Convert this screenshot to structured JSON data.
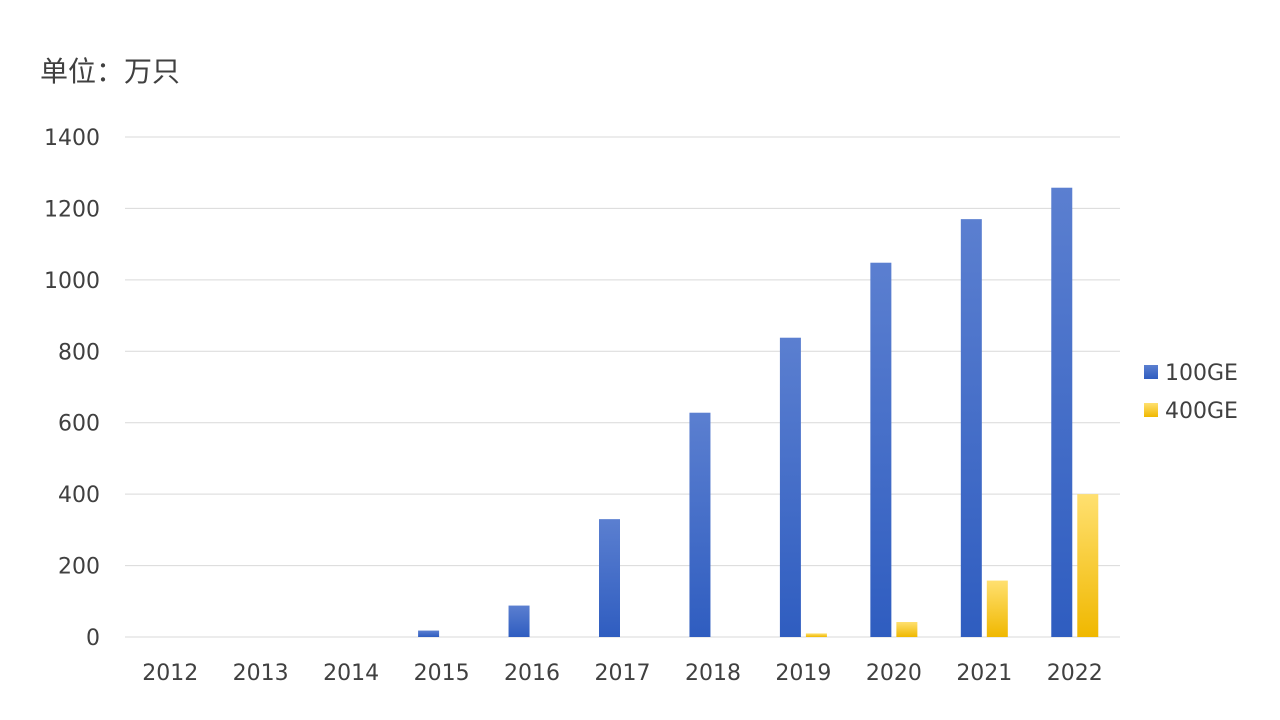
{
  "unit_label": "单位：万只",
  "colors": {
    "series_100ge_top": "#5b7fd0",
    "series_100ge_bottom": "#2f5dc0",
    "series_400ge_top": "#ffe070",
    "series_400ge_bottom": "#f0b800",
    "grid": "#d9d9d9",
    "text": "#404040"
  },
  "chart_data": {
    "type": "bar",
    "title": "",
    "unit": "单位：万只",
    "xlabel": "",
    "ylabel": "",
    "categories": [
      "2012",
      "2013",
      "2014",
      "2015",
      "2016",
      "2017",
      "2018",
      "2019",
      "2020",
      "2021",
      "2022"
    ],
    "series": [
      {
        "name": "100GE",
        "values": [
          0,
          0,
          0,
          18,
          88,
          330,
          628,
          838,
          1048,
          1170,
          1258
        ]
      },
      {
        "name": "400GE",
        "values": [
          0,
          0,
          0,
          0,
          0,
          0,
          0,
          10,
          42,
          158,
          400
        ]
      }
    ],
    "ylim": [
      0,
      1400
    ],
    "yticks": [
      "0",
      "200",
      "400",
      "600",
      "800",
      "1000",
      "1200",
      "1400"
    ],
    "grid": true,
    "legend_position": "right"
  }
}
